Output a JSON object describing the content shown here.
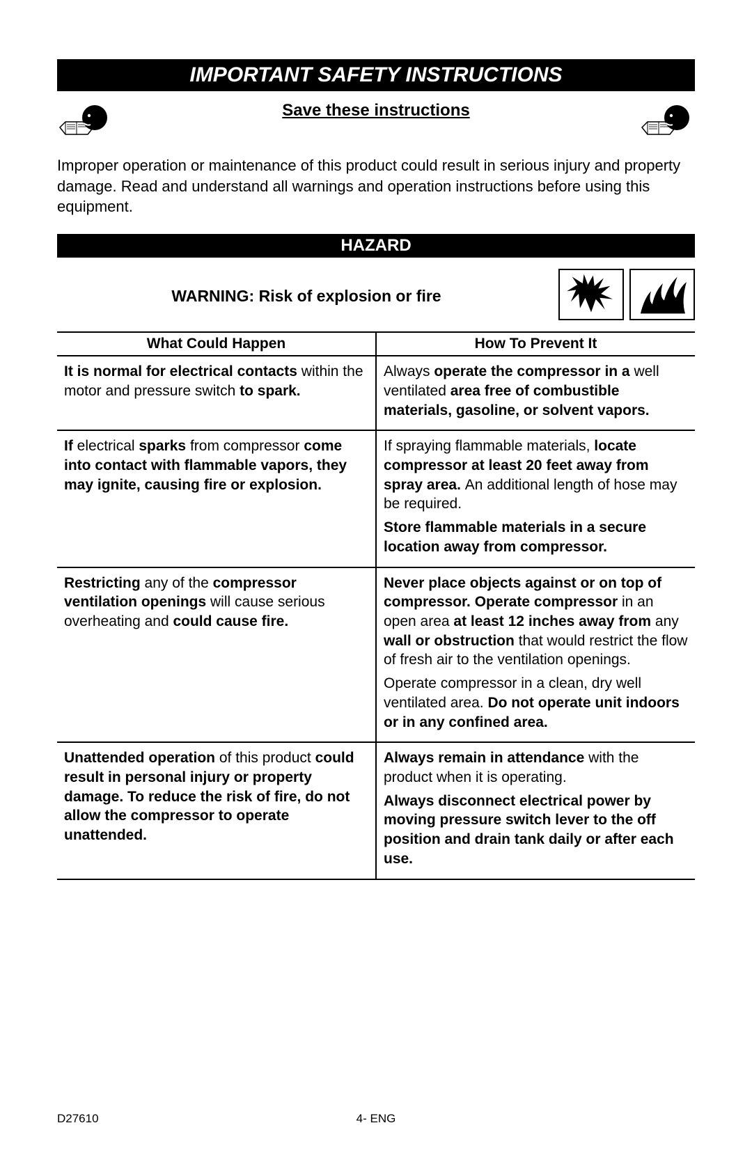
{
  "title": "IMPORTANT SAFETY INSTRUCTIONS",
  "title_fontsize": 30,
  "subtitle": "Save these instructions",
  "subtitle_fontsize": 24,
  "intro": "Improper operation or maintenance of this product could result in serious injury and property damage. Read and understand all warnings and operation instructions before using this equipment.",
  "intro_fontsize": 22,
  "hazard_label": "HAZARD",
  "hazard_fontsize": 24,
  "warning": "WARNING: Risk of explosion or fire",
  "warning_fontsize": 23,
  "table": {
    "header_left": "What Could Happen",
    "header_right": "How To Prevent It",
    "header_fontsize": 21,
    "cell_fontsize": 21,
    "rows": [
      {
        "left": [
          {
            "segments": [
              {
                "t": "It is normal for electrical contacts ",
                "b": true
              },
              {
                "t": "within the motor and pressure switch ",
                "b": false
              },
              {
                "t": "to spark.",
                "b": true
              }
            ]
          }
        ],
        "right": [
          {
            "segments": [
              {
                "t": "Always ",
                "b": false
              },
              {
                "t": "operate the compressor in a ",
                "b": true
              },
              {
                "t": "well ventilated ",
                "b": false
              },
              {
                "t": "area free of combustible materials, gasoline, or solvent vapors.",
                "b": true
              }
            ]
          }
        ]
      },
      {
        "left": [
          {
            "segments": [
              {
                "t": "If ",
                "b": true
              },
              {
                "t": "electrical ",
                "b": false
              },
              {
                "t": "sparks ",
                "b": true
              },
              {
                "t": "from compressor ",
                "b": false
              },
              {
                "t": "come into contact with flammable vapors, they may ignite, causing fire or explosion.",
                "b": true
              }
            ]
          }
        ],
        "right": [
          {
            "segments": [
              {
                "t": "If spraying flammable materials, ",
                "b": false
              },
              {
                "t": "locate compressor at least 20 feet away from spray area. ",
                "b": true
              },
              {
                "t": "An additional length of hose may be required.",
                "b": false
              }
            ]
          },
          {
            "segments": [
              {
                "t": "Store flammable materials in a secure location away from compressor.",
                "b": true
              }
            ]
          }
        ]
      },
      {
        "left": [
          {
            "segments": [
              {
                "t": "Restricting ",
                "b": true
              },
              {
                "t": "any of the ",
                "b": false
              },
              {
                "t": "compressor ventilation openings ",
                "b": true
              },
              {
                "t": "will cause serious overheating and ",
                "b": false
              },
              {
                "t": "could cause fire.",
                "b": true
              }
            ]
          }
        ],
        "right": [
          {
            "segments": [
              {
                "t": "Never place objects against or on top of compressor. Operate compressor ",
                "b": true
              },
              {
                "t": "in an open area ",
                "b": false
              },
              {
                "t": "at least 12 inches away from ",
                "b": true
              },
              {
                "t": "any ",
                "b": false
              },
              {
                "t": "wall or obstruction ",
                "b": true
              },
              {
                "t": "that would restrict the flow of fresh air to  the ventilation openings.",
                "b": false
              }
            ]
          },
          {
            "segments": [
              {
                "t": "Operate compressor in a clean, dry well ventilated area. ",
                "b": false
              },
              {
                "t": "Do not operate unit indoors or in any confined area.",
                "b": true
              }
            ]
          }
        ]
      },
      {
        "left": [
          {
            "segments": [
              {
                "t": "Unattended operation ",
                "b": true
              },
              {
                "t": "of this product ",
                "b": false
              },
              {
                "t": "could result in personal injury or property damage. To reduce the risk of fire, do not allow the compressor to operate unattended.",
                "b": true
              }
            ]
          }
        ],
        "right": [
          {
            "segments": [
              {
                "t": "Always remain in attendance ",
                "b": true
              },
              {
                "t": "with the product when it is operating.",
                "b": false
              }
            ]
          },
          {
            "segments": [
              {
                "t": "Always disconnect electrical power by moving pressure switch lever to the off position and drain tank daily or after each use.",
                "b": true
              }
            ]
          }
        ]
      }
    ]
  },
  "footer": {
    "doc_id": "D27610",
    "page": "4- ENG",
    "fontsize": 17
  },
  "colors": {
    "bg": "#ffffff",
    "text": "#000000",
    "bar_bg": "#000000",
    "bar_text": "#ffffff",
    "border": "#000000"
  }
}
